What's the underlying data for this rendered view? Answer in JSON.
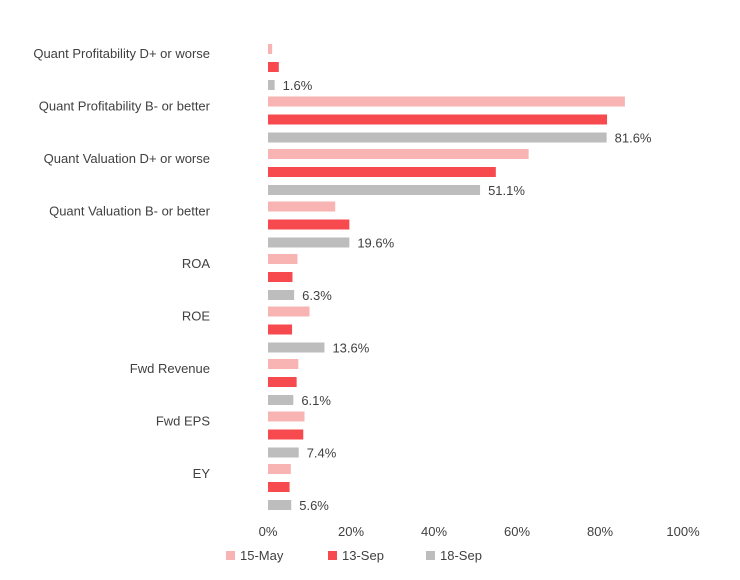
{
  "chart_data": {
    "type": "bar",
    "orientation": "horizontal",
    "categories": [
      "Quant Profitability D+ or worse",
      "Quant Profitability B- or better",
      "Quant Valuation D+ or worse",
      "Quant Valuation B- or better",
      "ROA",
      "ROE",
      "Fwd Revenue",
      "Fwd EPS",
      "EY"
    ],
    "series": [
      {
        "name": "15-May",
        "color": "#f8b3b3",
        "values": [
          1.0,
          86.0,
          62.8,
          16.2,
          7.1,
          10.0,
          7.3,
          8.8,
          5.5
        ]
      },
      {
        "name": "13-Sep",
        "color": "#f74a4f",
        "values": [
          2.6,
          81.7,
          54.9,
          19.6,
          5.9,
          5.8,
          6.9,
          8.5,
          5.2
        ]
      },
      {
        "name": "18-Sep",
        "color": "#bdbdbd",
        "values": [
          1.6,
          81.6,
          51.1,
          19.6,
          6.3,
          13.6,
          6.1,
          7.4,
          5.6
        ]
      }
    ],
    "data_labels": [
      "1.6%",
      "81.6%",
      "51.1%",
      "19.6%",
      "6.3%",
      "13.6%",
      "6.1%",
      "7.4%",
      "5.6%"
    ],
    "x_ticks": [
      "0%",
      "20%",
      "40%",
      "60%",
      "80%",
      "100%"
    ],
    "xlim": [
      0,
      100
    ],
    "grid": false,
    "legend_position": "bottom"
  }
}
